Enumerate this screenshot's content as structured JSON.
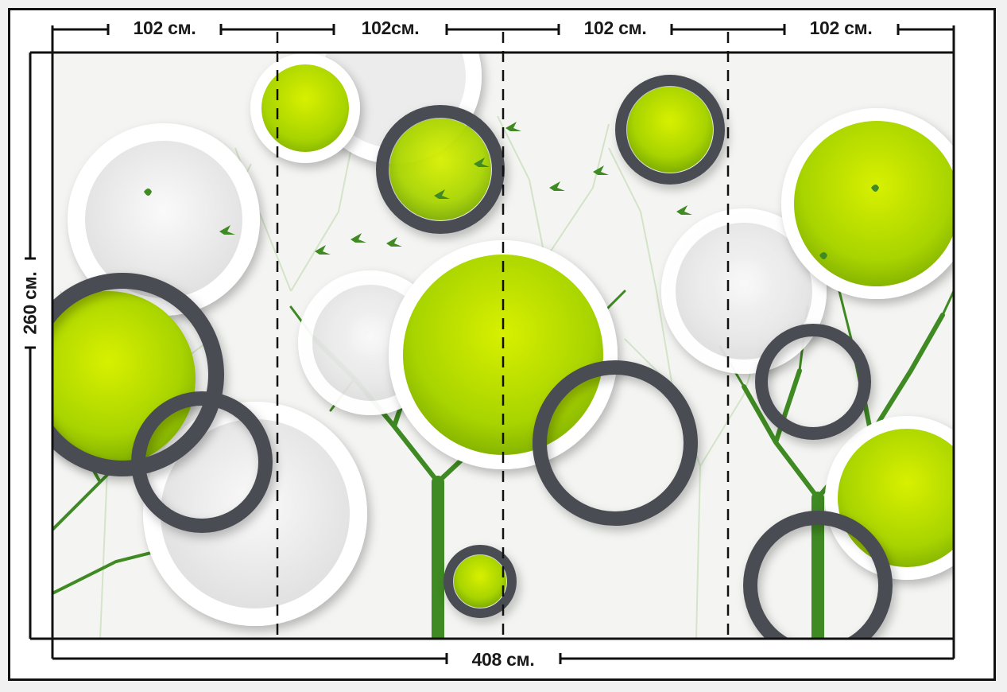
{
  "dimensions": {
    "panel_widths": [
      "102 см.",
      "102см.",
      "102 см.",
      "102 см."
    ],
    "total_width": "408 см.",
    "height": "260 см."
  },
  "colors": {
    "lime": "#a8d400",
    "ring_dark": "#4a4d52",
    "ring_white": "#ffffff",
    "tree_green": "#3f8a22",
    "tree_light": "#cfe2c4"
  }
}
